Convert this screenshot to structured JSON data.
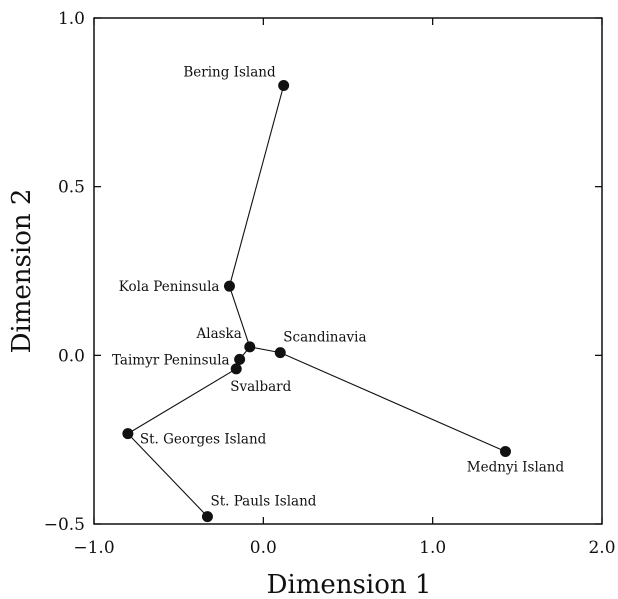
{
  "chart_data": {
    "type": "scatter",
    "title": "",
    "xlabel": "Dimension 1",
    "ylabel": "Dimension 2",
    "xlim": [
      -1.0,
      2.0
    ],
    "ylim": [
      -0.5,
      1.0
    ],
    "x_ticks": [
      -1.0,
      0.0,
      1.0,
      2.0
    ],
    "x_tick_labels": [
      "−1.0",
      "0.0",
      "1.0",
      "2.0"
    ],
    "y_ticks": [
      -0.5,
      0.0,
      0.5,
      1.0
    ],
    "y_tick_labels": [
      "−0.5",
      "0.0",
      "0.5",
      "1.0"
    ],
    "grid": false,
    "points": [
      {
        "label": "Bering Island",
        "x": 0.12,
        "y": 0.8,
        "label_pos": "above-left"
      },
      {
        "label": "Kola Peninsula",
        "x": -0.2,
        "y": 0.205,
        "label_pos": "left"
      },
      {
        "label": "Alaska",
        "x": -0.08,
        "y": 0.025,
        "label_pos": "above-left"
      },
      {
        "label": "Scandinavia",
        "x": 0.1,
        "y": 0.008,
        "label_pos": "above-right"
      },
      {
        "label": "Taimyr Peninsula",
        "x": -0.14,
        "y": -0.012,
        "label_pos": "left"
      },
      {
        "label": "Svalbard",
        "x": -0.16,
        "y": -0.04,
        "label_pos": "below-right"
      },
      {
        "label": "St. Georges Island",
        "x": -0.8,
        "y": -0.232,
        "label_pos": "right"
      },
      {
        "label": "St. Pauls Island",
        "x": -0.33,
        "y": -0.478,
        "label_pos": "above-right"
      },
      {
        "label": "Mednyi Island",
        "x": 1.43,
        "y": -0.285,
        "label_pos": "below"
      }
    ],
    "edges": [
      [
        "Bering Island",
        "Kola Peninsula"
      ],
      [
        "Kola Peninsula",
        "Alaska"
      ],
      [
        "Alaska",
        "Scandinavia"
      ],
      [
        "Alaska",
        "Taimyr Peninsula"
      ],
      [
        "Taimyr Peninsula",
        "Svalbard"
      ],
      [
        "Scandinavia",
        "Mednyi Island"
      ],
      [
        "Svalbard",
        "St. Georges Island"
      ],
      [
        "St. Georges Island",
        "St. Pauls Island"
      ]
    ]
  }
}
